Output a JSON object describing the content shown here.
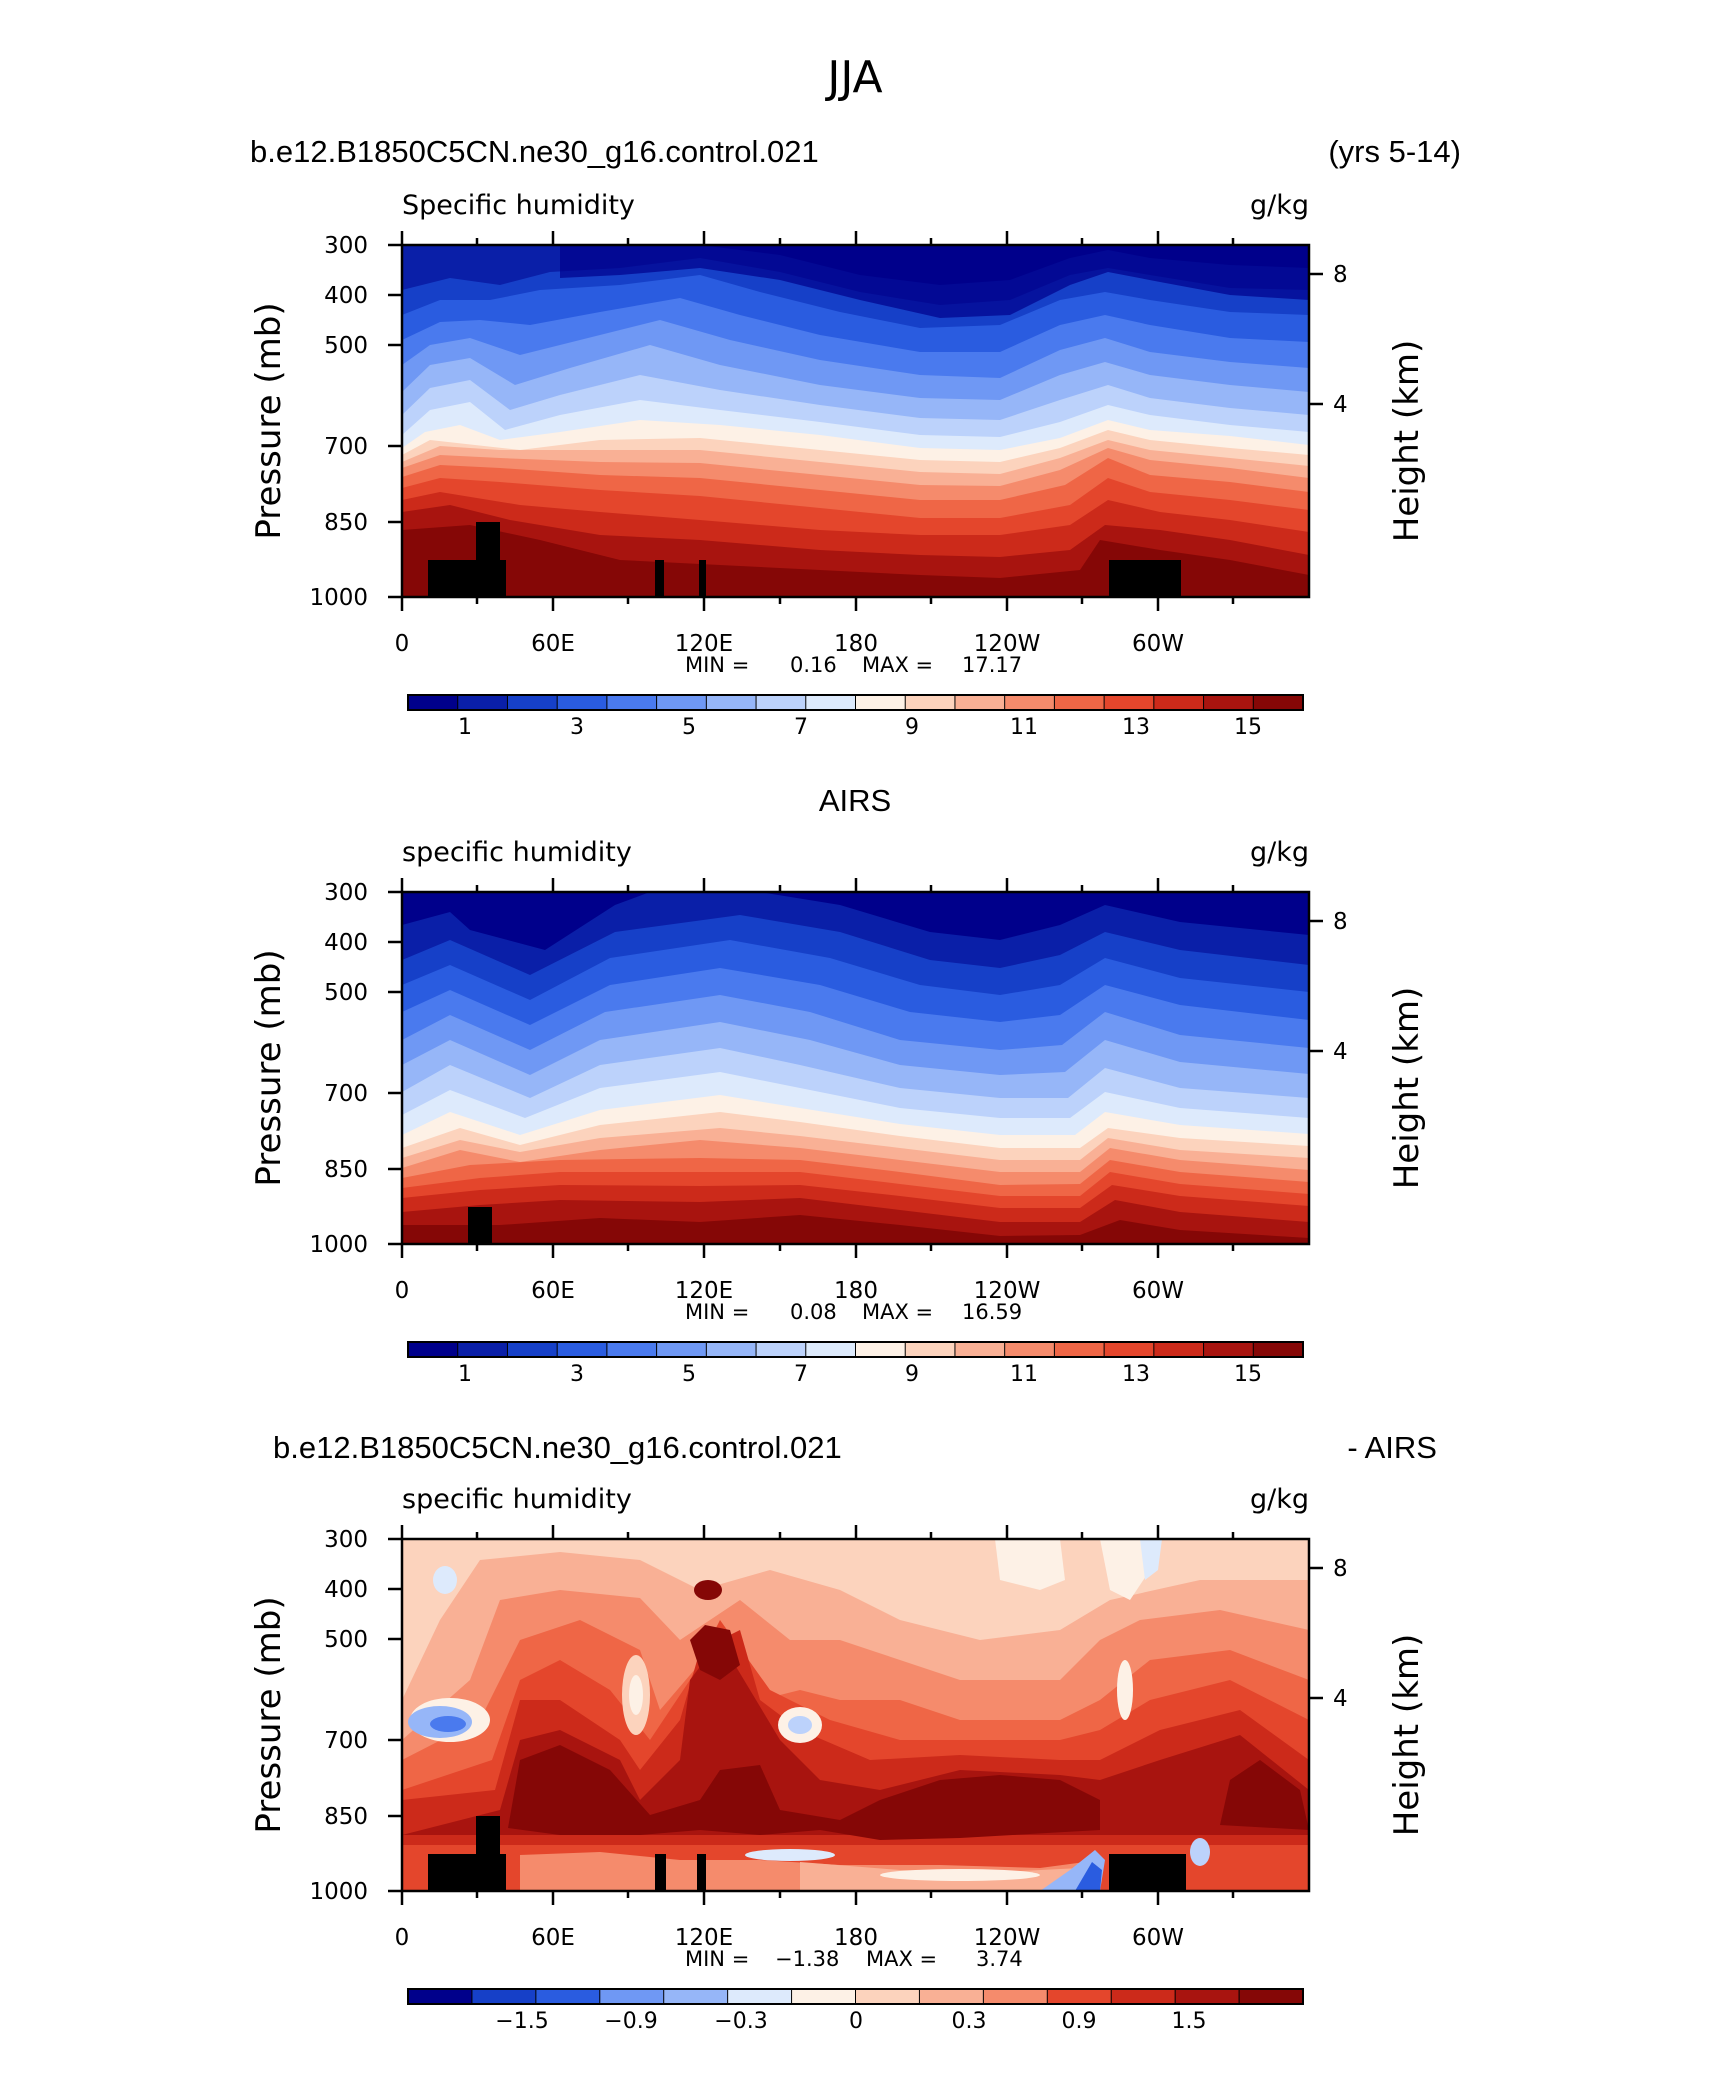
{
  "page": {
    "title": "JJA"
  },
  "panels": [
    {
      "title_left": "b.e12.B1850C5CN.ne30_g16.control.021",
      "title_right": "(yrs 5-14)",
      "variable": "Specific humidity",
      "units": "g/kg",
      "ylabel": "Pressure (mb)",
      "ylabel_right": "Height (km)",
      "yticks": [
        "300",
        "400",
        "500",
        "700",
        "850",
        "1000"
      ],
      "yticks_right": [
        "8",
        "4"
      ],
      "xticks": [
        "0",
        "60E",
        "120E",
        "180",
        "120W",
        "60W"
      ],
      "stats": {
        "min_label": "MIN =",
        "min": "0.16",
        "max_label": "MAX =",
        "max": "17.17"
      },
      "colorbar_labels": [
        "1",
        "3",
        "5",
        "7",
        "9",
        "11",
        "13",
        "15"
      ]
    },
    {
      "title_center": "AIRS",
      "variable": "specific humidity",
      "units": "g/kg",
      "ylabel": "Pressure (mb)",
      "ylabel_right": "Height (km)",
      "yticks": [
        "300",
        "400",
        "500",
        "700",
        "850",
        "1000"
      ],
      "yticks_right": [
        "8",
        "4"
      ],
      "xticks": [
        "0",
        "60E",
        "120E",
        "180",
        "120W",
        "60W"
      ],
      "stats": {
        "min_label": "MIN =",
        "min": "0.08",
        "max_label": "MAX =",
        "max": "16.59"
      },
      "colorbar_labels": [
        "1",
        "3",
        "5",
        "7",
        "9",
        "11",
        "13",
        "15"
      ]
    },
    {
      "title_left": "b.e12.B1850C5CN.ne30_g16.control.021",
      "title_right": "- AIRS",
      "variable": "specific humidity",
      "units": "g/kg",
      "ylabel": "Pressure (mb)",
      "ylabel_right": "Height (km)",
      "yticks": [
        "300",
        "400",
        "500",
        "700",
        "850",
        "1000"
      ],
      "yticks_right": [
        "8",
        "4"
      ],
      "xticks": [
        "0",
        "60E",
        "120E",
        "180",
        "120W",
        "60W"
      ],
      "stats": {
        "min_label": "MIN =",
        "min": "−1.38",
        "max_label": "MAX =",
        "max": "3.74"
      },
      "colorbar_labels": [
        "−1.5",
        "−0.9",
        "−0.3",
        "0",
        "0.3",
        "0.9",
        "1.5"
      ]
    }
  ],
  "chart_data": [
    {
      "type": "heatmap",
      "variable": "Specific humidity",
      "units": "g/kg",
      "x": {
        "range": [
          0,
          360
        ],
        "ticks": [
          0,
          60,
          120,
          180,
          240,
          300
        ]
      },
      "y": {
        "scale": "log",
        "range": [
          300,
          1000
        ],
        "ticks": [
          300,
          400,
          500,
          700,
          850,
          1000
        ]
      },
      "y_right": {
        "ticks": [
          8,
          4
        ]
      },
      "levels": [
        0.5,
        1,
        1.5,
        2,
        3,
        3.5,
        4.5,
        5,
        6,
        6.5,
        7.5,
        8,
        9,
        9.5,
        10.5,
        11,
        12,
        12.5,
        13.5,
        14,
        15,
        15.5
      ],
      "colorbar_ticks": [
        1,
        3,
        5,
        7,
        9,
        11,
        13,
        15
      ],
      "colors": [
        "#00008b",
        "#0a1fa8",
        "#1640c8",
        "#2a5ce0",
        "#4a7aee",
        "#6f98f4",
        "#96b6f8",
        "#bcd2fb",
        "#ddeafc",
        "#fdf1e6",
        "#fcd3bd",
        "#f9b095",
        "#f58b6c",
        "#ef6646",
        "#e4462c",
        "#cc2a1a",
        "#a8140f",
        "#850706"
      ],
      "min": 0.16,
      "max": 17.17
    },
    {
      "type": "heatmap",
      "variable": "specific humidity",
      "units": "g/kg",
      "x": {
        "range": [
          0,
          360
        ],
        "ticks": [
          0,
          60,
          120,
          180,
          240,
          300
        ]
      },
      "y": {
        "scale": "log",
        "range": [
          300,
          1000
        ],
        "ticks": [
          300,
          400,
          500,
          700,
          850,
          1000
        ]
      },
      "y_right": {
        "ticks": [
          8,
          4
        ]
      },
      "colorbar_ticks": [
        1,
        3,
        5,
        7,
        9,
        11,
        13,
        15
      ],
      "min": 0.08,
      "max": 16.59
    },
    {
      "type": "heatmap",
      "variable": "specific humidity",
      "units": "g/kg",
      "x": {
        "range": [
          0,
          360
        ],
        "ticks": [
          0,
          60,
          120,
          180,
          240,
          300
        ]
      },
      "y": {
        "scale": "log",
        "range": [
          300,
          1000
        ],
        "ticks": [
          300,
          400,
          500,
          700,
          850,
          1000
        ]
      },
      "y_right": {
        "ticks": [
          8,
          4
        ]
      },
      "colorbar_ticks": [
        -1.5,
        -0.9,
        -0.3,
        0,
        0.3,
        0.9,
        1.5
      ],
      "colors": [
        "#00008b",
        "#1640c8",
        "#2a5ce0",
        "#6f98f4",
        "#96b6f8",
        "#ddeafc",
        "#fdf1e6",
        "#fcd3bd",
        "#f9b095",
        "#f58b6c",
        "#e4462c",
        "#cc2a1a",
        "#a8140f",
        "#850706"
      ],
      "min": -1.38,
      "max": 3.74
    }
  ]
}
